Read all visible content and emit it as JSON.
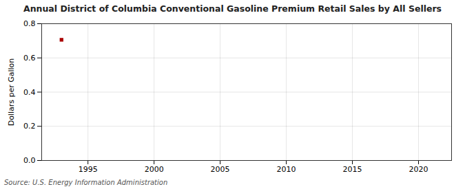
{
  "chart_data": {
    "type": "scatter",
    "title": "Annual District of Columbia Conventional Gasoline Premium Retail Sales by All Sellers",
    "ylabel": "Dollars per Gallon",
    "source": "Source: U.S. Energy Information Administration",
    "x": [
      1993
    ],
    "values": [
      0.706
    ],
    "color": "#aa0000",
    "marker": "square",
    "xlim": [
      1991.5,
      2022.5
    ],
    "xticks": [
      1995,
      2000,
      2005,
      2010,
      2015,
      2020
    ],
    "ylim": [
      0.0,
      0.8
    ],
    "yticks": [
      {
        "value": 0.0,
        "label": "0.0"
      },
      0.2,
      0.4,
      0.6,
      0.8
    ],
    "grid": true
  }
}
